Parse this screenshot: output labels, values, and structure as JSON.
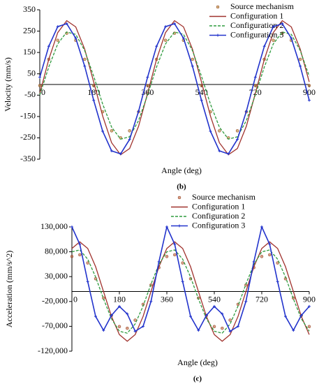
{
  "chart_data": [
    {
      "type": "line",
      "caption": "(b)",
      "x_label": "Angle (deg)",
      "y_label": "Velocity (mm/s)",
      "legend": "upper right",
      "xlim": [
        0,
        900
      ],
      "xticks": [
        0,
        180,
        360,
        540,
        720,
        900
      ],
      "ylim": [
        -350,
        350
      ],
      "yticks": [
        -350,
        -250,
        -150,
        -50,
        50,
        150,
        250,
        350
      ],
      "x": [
        0,
        30,
        60,
        90,
        120,
        150,
        180,
        210,
        240,
        270,
        300,
        330,
        360,
        390,
        420,
        450,
        480,
        510,
        540,
        570,
        600,
        630,
        660,
        690,
        720,
        750,
        780,
        810,
        840,
        870,
        900
      ],
      "series": [
        {
          "name": "Source mechanism",
          "color": "#b8862b",
          "style": "dots",
          "values": [
            -5,
            118,
            207,
            240,
            207,
            118,
            -5,
            -128,
            -217,
            -250,
            -217,
            -128,
            -5,
            118,
            207,
            240,
            207,
            118,
            -5,
            -128,
            -217,
            -250,
            -217,
            -128,
            -5,
            118,
            207,
            240,
            207,
            118,
            -5
          ]
        },
        {
          "name": "Configuration 1",
          "color": "#a0322d",
          "style": "solid",
          "values": [
            -42,
            118,
            243,
            299,
            270,
            166,
            12,
            -148,
            -273,
            -329,
            -300,
            -196,
            -42,
            118,
            243,
            299,
            270,
            166,
            12,
            -148,
            -273,
            -329,
            -300,
            -196,
            -42,
            118,
            243,
            299,
            270,
            166,
            12
          ]
        },
        {
          "name": "Configuration 2",
          "color": "#2e9b3e",
          "style": "dashed",
          "values": [
            -49,
            82,
            190,
            246,
            235,
            159,
            39,
            -92,
            -200,
            -256,
            -245,
            -169,
            -49,
            82,
            190,
            246,
            235,
            159,
            39,
            -92,
            -200,
            -256,
            -245,
            -169,
            -49,
            82,
            190,
            246,
            235,
            159,
            39
          ]
        },
        {
          "name": "Configuration 3",
          "color": "#2233cc",
          "style": "line-markers",
          "values": [
            34,
            179,
            271,
            285,
            217,
            86,
            -74,
            -219,
            -311,
            -325,
            -257,
            -126,
            34,
            179,
            271,
            285,
            217,
            86,
            -74,
            -219,
            -311,
            -325,
            -257,
            -126,
            34,
            179,
            271,
            285,
            217,
            86,
            -74
          ]
        }
      ]
    },
    {
      "type": "line",
      "caption": "(c)",
      "x_label": "Angle (deg)",
      "y_label": "Acceleration (mm/s^2)",
      "legend": "upper right",
      "xlim": [
        0,
        900
      ],
      "xticks": [
        0,
        180,
        360,
        540,
        720,
        900
      ],
      "ylim": [
        -120000,
        130000
      ],
      "yticks": [
        {
          "value": -120000,
          "label": "-120,000"
        },
        {
          "value": -70000,
          "label": "-70,000"
        },
        {
          "value": -20000,
          "label": "-20,000"
        },
        {
          "value": 30000,
          "label": "30,000"
        },
        {
          "value": 80000,
          "label": "80,000"
        },
        {
          "value": 130000,
          "label": "130,000"
        }
      ],
      "x": [
        0,
        30,
        60,
        90,
        120,
        150,
        180,
        210,
        240,
        270,
        300,
        330,
        360,
        390,
        420,
        450,
        480,
        510,
        540,
        570,
        600,
        630,
        660,
        690,
        720,
        750,
        780,
        810,
        840,
        870,
        900
      ],
      "series": [
        {
          "name": "Source mechanism",
          "color": "#c0603a",
          "style": "dots",
          "values": [
            70500,
            73900,
            57500,
            25700,
            -13100,
            -48200,
            -70500,
            -73900,
            -57500,
            -25700,
            13100,
            48200,
            70500,
            73900,
            57500,
            25700,
            -13100,
            -48200,
            -70500,
            -73900,
            -57500,
            -25700,
            13100,
            48200,
            70500,
            73900,
            57500,
            25700,
            -13100,
            -48200,
            -70500
          ]
        },
        {
          "name": "Configuration 1",
          "color": "#a0322d",
          "style": "solid",
          "values": [
            86600,
            100000,
            86600,
            50000,
            0,
            -50000,
            -86600,
            -100000,
            -86600,
            -50000,
            0,
            50000,
            86600,
            100000,
            86600,
            50000,
            0,
            -50000,
            -86600,
            -100000,
            -86600,
            -50000,
            0,
            50000,
            86600,
            100000,
            86600,
            50000,
            0,
            -50000,
            -86600
          ]
        },
        {
          "name": "Configuration 2",
          "color": "#2e9b3e",
          "style": "dashed",
          "values": [
            79900,
            83700,
            65100,
            29100,
            -14800,
            -54700,
            -79900,
            -83700,
            -65100,
            -29100,
            14800,
            54700,
            79900,
            83700,
            65100,
            29100,
            -14800,
            -54700,
            -79900,
            -83700,
            -65100,
            -29100,
            14800,
            54700,
            79900,
            83700,
            65100,
            29100,
            -14800,
            -54700,
            -79900
          ]
        },
        {
          "name": "Configuration 3",
          "color": "#2233cc",
          "style": "line-markers",
          "values": [
            130000,
            95000,
            20000,
            -50000,
            -78000,
            -48000,
            -30000,
            -45000,
            -80000,
            -70000,
            -20000,
            60000,
            130000,
            95000,
            20000,
            -50000,
            -78000,
            -48000,
            -30000,
            -45000,
            -80000,
            -70000,
            -20000,
            60000,
            130000,
            95000,
            20000,
            -50000,
            -78000,
            -48000,
            -30000
          ]
        }
      ]
    }
  ]
}
